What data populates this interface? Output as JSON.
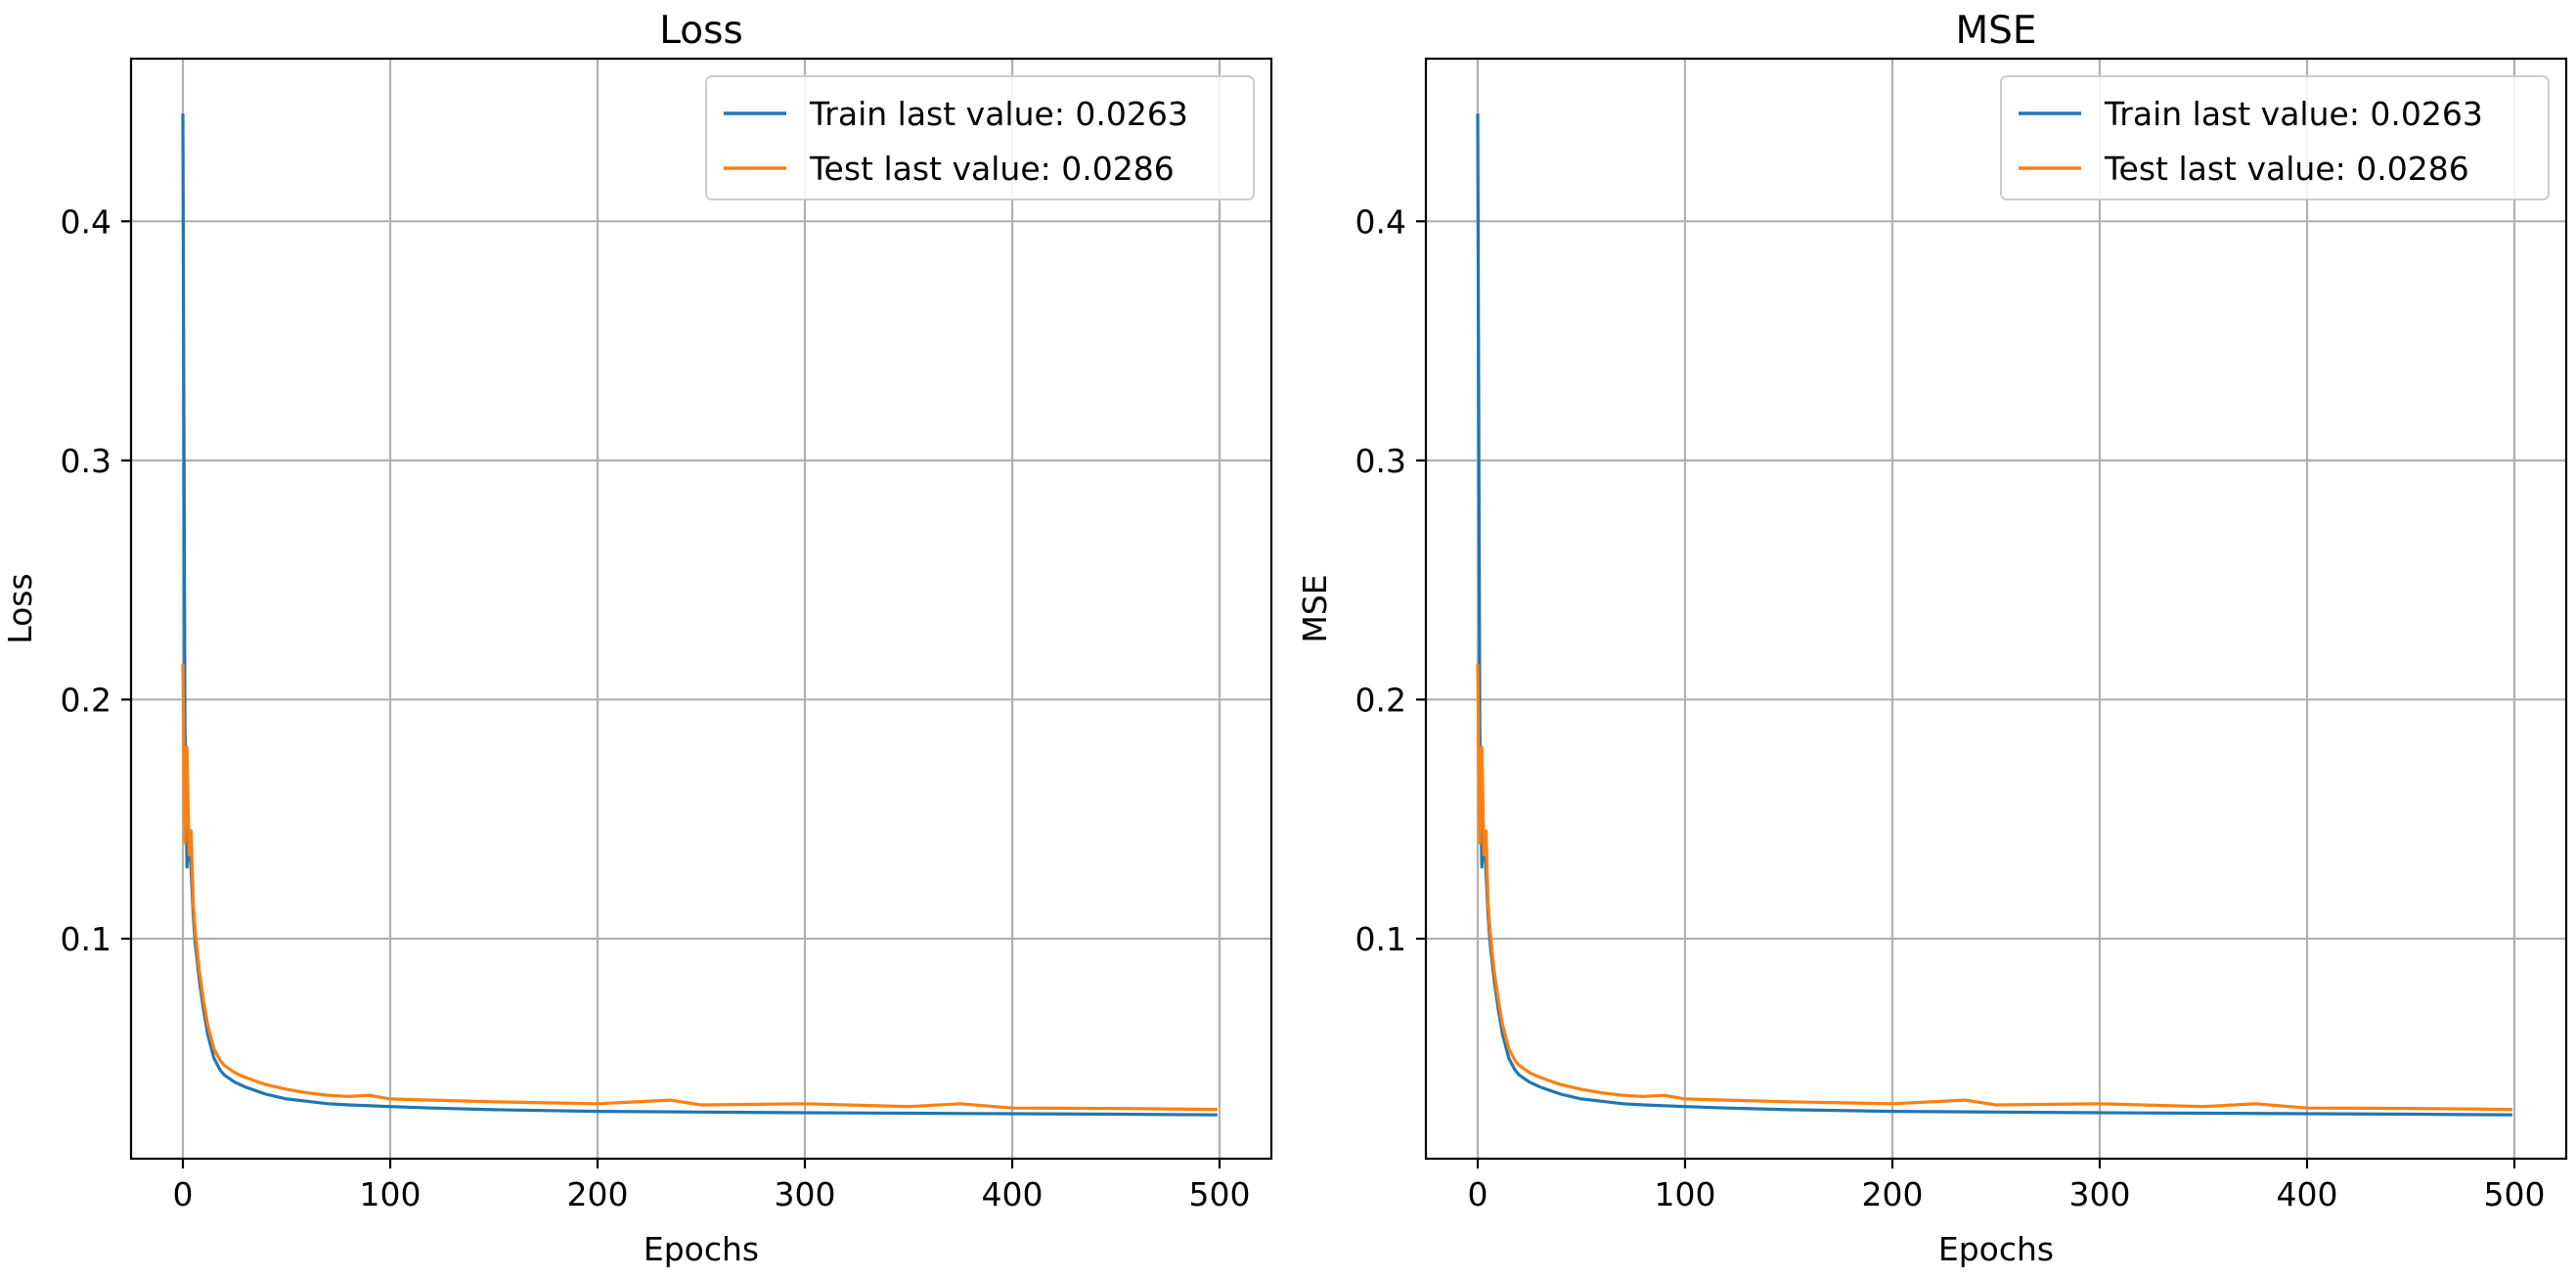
{
  "chart_data": [
    {
      "type": "line",
      "title": "Loss",
      "xlabel": "Epochs",
      "ylabel": "Loss",
      "xlim": [
        -25,
        525
      ],
      "ylim": [
        0.008,
        0.468
      ],
      "xticks": [
        0,
        100,
        200,
        300,
        400,
        500
      ],
      "xtick_labels": [
        "0",
        "100",
        "200",
        "300",
        "400",
        "500"
      ],
      "yticks": [
        0.1,
        0.2,
        0.3,
        0.4
      ],
      "ytick_labels": [
        "0.1",
        "0.2",
        "0.3",
        "0.4"
      ],
      "grid": true,
      "legend_position": "top-right",
      "series": [
        {
          "name": "Train last value: 0.0263",
          "color": "#1f77b4",
          "x": [
            0,
            1,
            2,
            3,
            4,
            5,
            6,
            8,
            10,
            12,
            15,
            18,
            20,
            25,
            30,
            40,
            50,
            60,
            70,
            80,
            100,
            120,
            150,
            200,
            250,
            300,
            350,
            400,
            450,
            499
          ],
          "y": [
            0.445,
            0.19,
            0.13,
            0.145,
            0.128,
            0.11,
            0.098,
            0.082,
            0.07,
            0.06,
            0.05,
            0.045,
            0.043,
            0.04,
            0.038,
            0.035,
            0.033,
            0.032,
            0.031,
            0.0305,
            0.0298,
            0.0292,
            0.0285,
            0.0278,
            0.0275,
            0.0272,
            0.027,
            0.0268,
            0.0266,
            0.0263
          ]
        },
        {
          "name": "Test last value: 0.0286",
          "color": "#ff7f0e",
          "x": [
            0,
            1,
            2,
            3,
            4,
            5,
            6,
            8,
            10,
            12,
            15,
            18,
            20,
            25,
            30,
            40,
            50,
            60,
            70,
            80,
            90,
            100,
            120,
            150,
            200,
            235,
            250,
            300,
            350,
            375,
            400,
            450,
            499
          ],
          "y": [
            0.215,
            0.14,
            0.18,
            0.135,
            0.145,
            0.115,
            0.103,
            0.086,
            0.074,
            0.064,
            0.054,
            0.049,
            0.047,
            0.044,
            0.042,
            0.039,
            0.037,
            0.0355,
            0.0345,
            0.034,
            0.0345,
            0.033,
            0.0325,
            0.0318,
            0.031,
            0.0325,
            0.0305,
            0.031,
            0.0298,
            0.031,
            0.0292,
            0.029,
            0.0286
          ]
        }
      ]
    },
    {
      "type": "line",
      "title": "MSE",
      "xlabel": "Epochs",
      "ylabel": "MSE",
      "xlim": [
        -25,
        525
      ],
      "ylim": [
        0.008,
        0.468
      ],
      "xticks": [
        0,
        100,
        200,
        300,
        400,
        500
      ],
      "xtick_labels": [
        "0",
        "100",
        "200",
        "300",
        "400",
        "500"
      ],
      "yticks": [
        0.1,
        0.2,
        0.3,
        0.4
      ],
      "ytick_labels": [
        "0.1",
        "0.2",
        "0.3",
        "0.4"
      ],
      "grid": true,
      "legend_position": "top-right",
      "series": [
        {
          "name": "Train last value: 0.0263",
          "color": "#1f77b4",
          "x": [
            0,
            1,
            2,
            3,
            4,
            5,
            6,
            8,
            10,
            12,
            15,
            18,
            20,
            25,
            30,
            40,
            50,
            60,
            70,
            80,
            100,
            120,
            150,
            200,
            250,
            300,
            350,
            400,
            450,
            499
          ],
          "y": [
            0.445,
            0.19,
            0.13,
            0.145,
            0.128,
            0.11,
            0.098,
            0.082,
            0.07,
            0.06,
            0.05,
            0.045,
            0.043,
            0.04,
            0.038,
            0.035,
            0.033,
            0.032,
            0.031,
            0.0305,
            0.0298,
            0.0292,
            0.0285,
            0.0278,
            0.0275,
            0.0272,
            0.027,
            0.0268,
            0.0266,
            0.0263
          ]
        },
        {
          "name": "Test last value: 0.0286",
          "color": "#ff7f0e",
          "x": [
            0,
            1,
            2,
            3,
            4,
            5,
            6,
            8,
            10,
            12,
            15,
            18,
            20,
            25,
            30,
            40,
            50,
            60,
            70,
            80,
            90,
            100,
            120,
            150,
            200,
            235,
            250,
            300,
            350,
            375,
            400,
            450,
            499
          ],
          "y": [
            0.215,
            0.14,
            0.18,
            0.135,
            0.145,
            0.115,
            0.103,
            0.086,
            0.074,
            0.064,
            0.054,
            0.049,
            0.047,
            0.044,
            0.042,
            0.039,
            0.037,
            0.0355,
            0.0345,
            0.034,
            0.0345,
            0.033,
            0.0325,
            0.0318,
            0.031,
            0.0325,
            0.0305,
            0.031,
            0.0298,
            0.031,
            0.0292,
            0.029,
            0.0286
          ]
        }
      ]
    }
  ]
}
